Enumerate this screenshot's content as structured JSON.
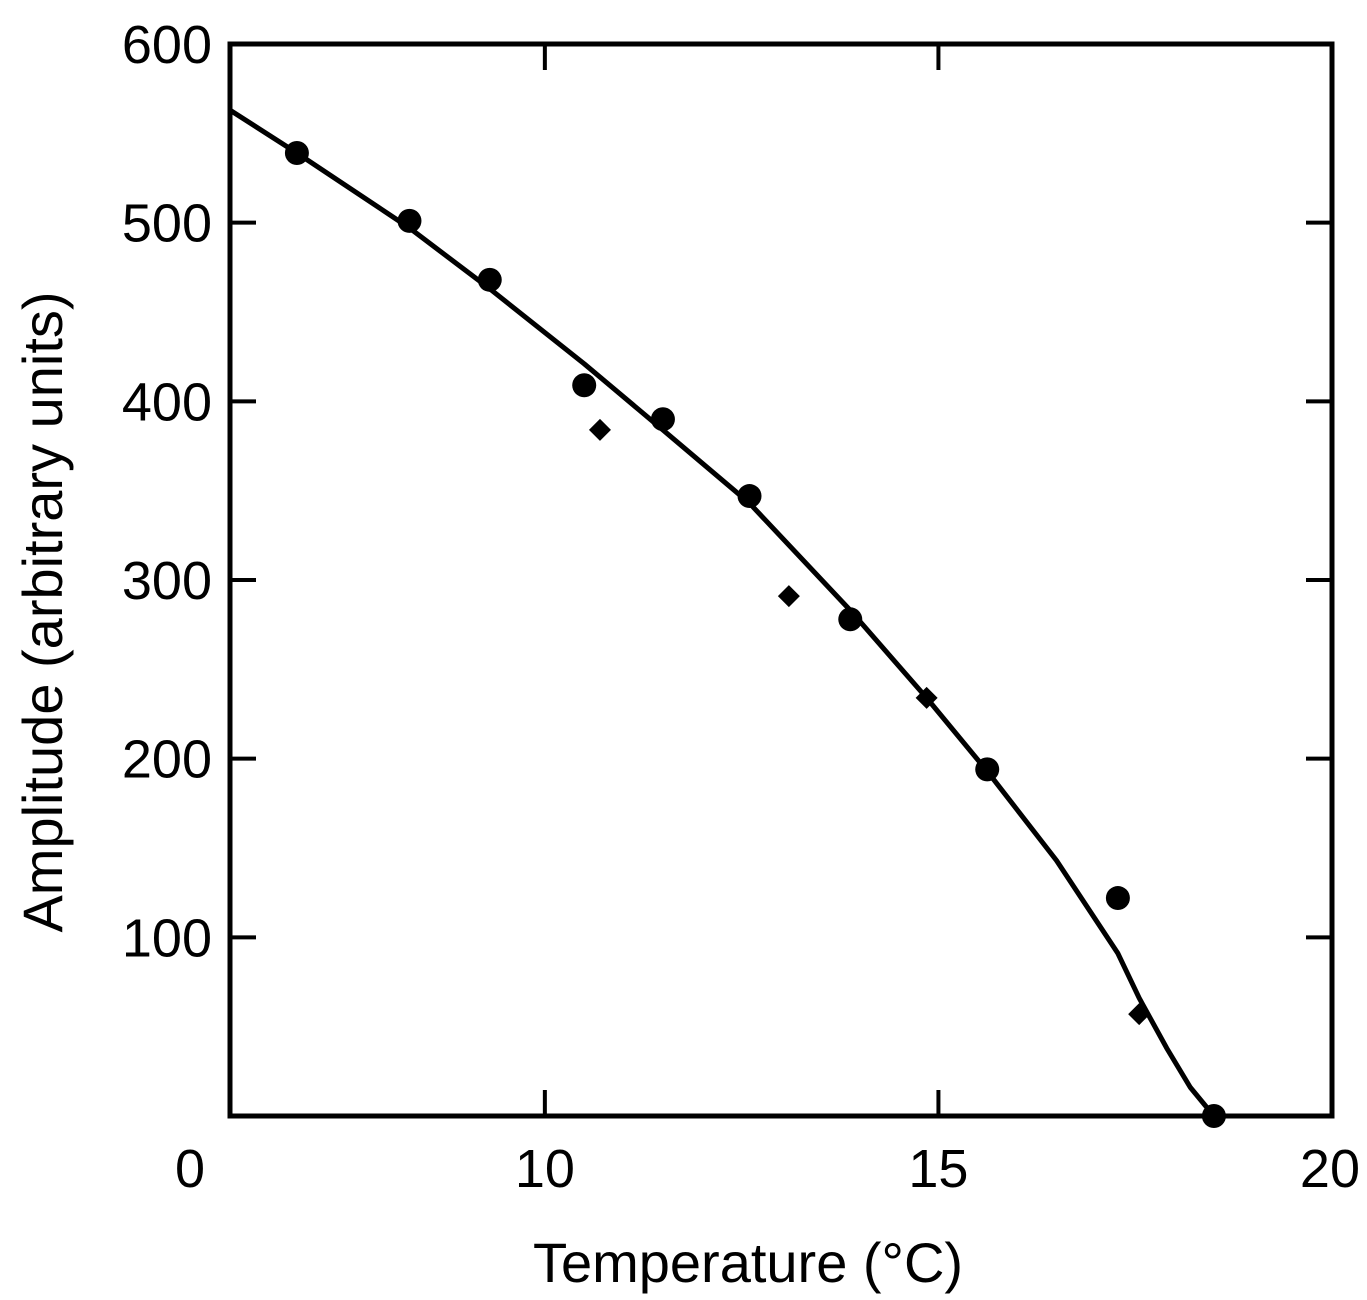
{
  "chart_data": {
    "type": "scatter",
    "title": "",
    "xlabel": "Temperature (°C)",
    "ylabel": "Amplitude (arbitrary units)",
    "xlim": [
      6,
      20
    ],
    "ylim": [
      0,
      600
    ],
    "x_axis_origin_label": "0",
    "x_ticks": [
      10,
      15,
      20
    ],
    "y_ticks": [
      100,
      200,
      300,
      400,
      500,
      600
    ],
    "grid": false,
    "legend": "none",
    "series": [
      {
        "marker": "circle",
        "color": "#000000",
        "x": [
          6.85,
          8.28,
          9.3,
          10.5,
          11.5,
          12.6,
          13.88,
          15.62,
          17.28,
          18.5
        ],
        "y": [
          539,
          501,
          468,
          409,
          390,
          347,
          278,
          194,
          122,
          0
        ]
      },
      {
        "marker": "diamond",
        "color": "#000000",
        "x": [
          10.7,
          13.1,
          14.85,
          17.55
        ],
        "y": [
          384,
          291,
          234,
          57
        ]
      },
      {
        "marker": "line",
        "color": "#000000",
        "x": [
          6.0,
          6.85,
          8.28,
          9.3,
          10.5,
          11.5,
          12.6,
          13.88,
          14.85,
          15.62,
          16.5,
          17.28,
          17.55,
          17.9,
          18.2,
          18.5
        ],
        "y": [
          563,
          539,
          497,
          463,
          421,
          384,
          343,
          283,
          234,
          193,
          143,
          91,
          66,
          38,
          16,
          0
        ]
      }
    ]
  }
}
